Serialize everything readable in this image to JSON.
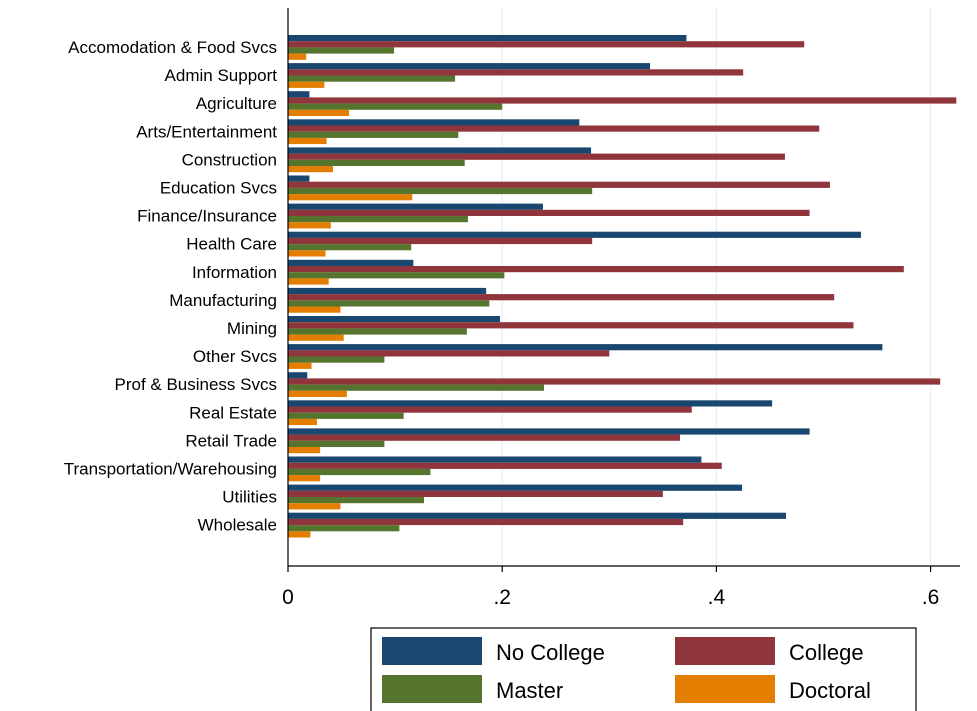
{
  "chart_data": {
    "type": "bar",
    "orientation": "horizontal",
    "title": "",
    "xlabel": "",
    "ylabel": "",
    "xlim": [
      0,
      0.63
    ],
    "xticks": [
      0,
      0.2,
      0.4,
      0.6
    ],
    "xtick_labels": [
      "0",
      ".2",
      ".4",
      ".6"
    ],
    "grid": true,
    "legend_position": "bottom",
    "categories": [
      "Accomodation & Food Svcs",
      "Admin Support",
      "Agriculture",
      "Arts/Entertainment",
      "Construction",
      "Education Svcs",
      "Finance/Insurance",
      "Health Care",
      "Information",
      "Manufacturing",
      "Mining",
      "Other Svcs",
      "Prof & Business Svcs",
      "Real Estate",
      "Retail Trade",
      "Transportation/Warehousing",
      "Utilities",
      "Wholesale"
    ],
    "series": [
      {
        "name": "No College",
        "color": "#1a476f",
        "values": [
          0.372,
          0.338,
          0.02,
          0.272,
          0.283,
          0.02,
          0.238,
          0.535,
          0.117,
          0.185,
          0.198,
          0.555,
          0.018,
          0.452,
          0.487,
          0.386,
          0.424,
          0.465
        ]
      },
      {
        "name": "College",
        "color": "#90353b",
        "values": [
          0.482,
          0.425,
          0.624,
          0.496,
          0.464,
          0.506,
          0.487,
          0.284,
          0.575,
          0.51,
          0.528,
          0.3,
          0.609,
          0.377,
          0.366,
          0.405,
          0.35,
          0.369
        ]
      },
      {
        "name": "Master",
        "color": "#55752f",
        "values": [
          0.099,
          0.156,
          0.2,
          0.159,
          0.165,
          0.284,
          0.168,
          0.115,
          0.202,
          0.188,
          0.167,
          0.09,
          0.239,
          0.108,
          0.09,
          0.133,
          0.127,
          0.104
        ]
      },
      {
        "name": "Doctoral",
        "color": "#e37e00",
        "values": [
          0.017,
          0.034,
          0.057,
          0.036,
          0.042,
          0.116,
          0.04,
          0.035,
          0.038,
          0.049,
          0.052,
          0.022,
          0.055,
          0.027,
          0.03,
          0.03,
          0.049,
          0.021
        ]
      }
    ]
  },
  "legend": {
    "items": [
      {
        "label": "No College",
        "color": "#1a476f"
      },
      {
        "label": "College",
        "color": "#90353b"
      },
      {
        "label": "Master",
        "color": "#55752f"
      },
      {
        "label": "Doctoral",
        "color": "#e37e00"
      }
    ]
  }
}
